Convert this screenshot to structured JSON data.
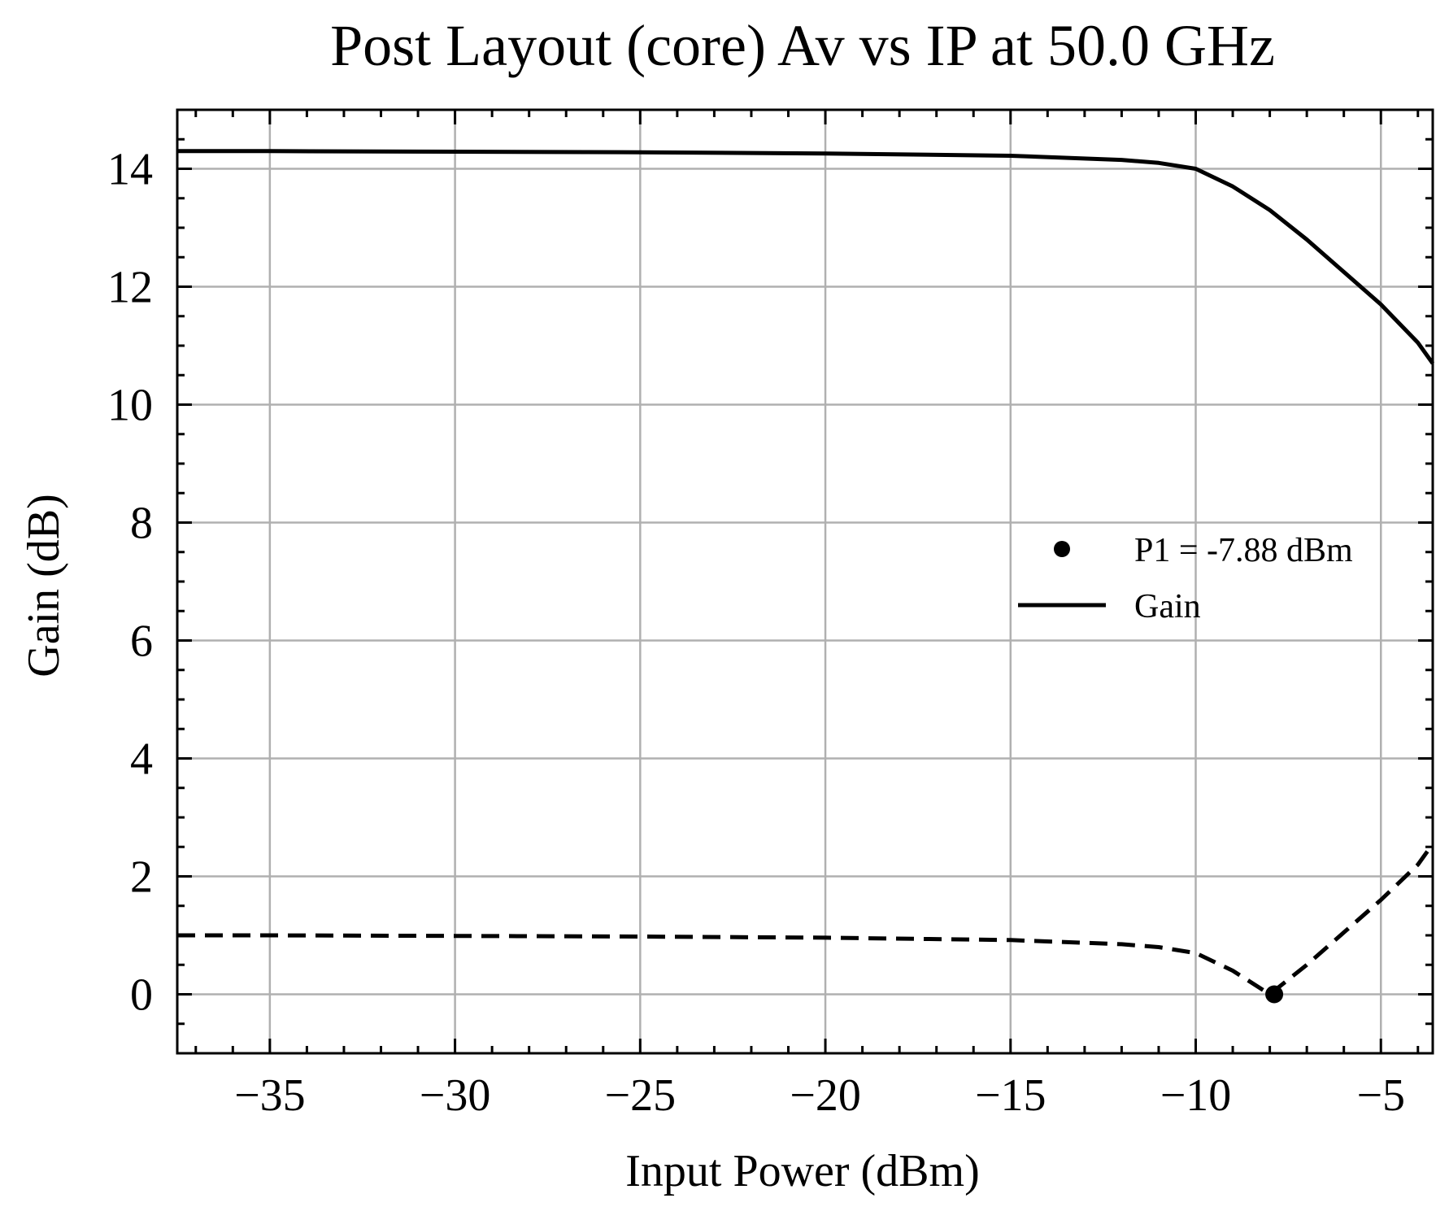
{
  "chart_data": {
    "type": "line",
    "title": "Post Layout (core) Av vs IP at 50.0 GHz",
    "xlabel": "Input Power (dBm)",
    "ylabel": "Gain (dB)",
    "xlim": [
      -37.5,
      -3.6
    ],
    "ylim": [
      -1.0,
      15.0
    ],
    "xticks": [
      -35,
      -30,
      -25,
      -20,
      -15,
      -10,
      -5
    ],
    "xtick_labels": [
      "−35",
      "−30",
      "−25",
      "−20",
      "−15",
      "−10",
      "−5"
    ],
    "yticks": [
      0,
      2,
      4,
      6,
      8,
      10,
      12,
      14
    ],
    "ytick_labels": [
      "0",
      "2",
      "4",
      "6",
      "8",
      "10",
      "12",
      "14"
    ],
    "grid": true,
    "legend_position": "right",
    "series": [
      {
        "name": "Gain",
        "style": "solid",
        "color": "#000000",
        "x": [
          -37.5,
          -35,
          -30,
          -25,
          -20,
          -15,
          -12,
          -11,
          -10,
          -9,
          -8,
          -7,
          -6,
          -5,
          -4,
          -3.6
        ],
        "y": [
          14.3,
          14.3,
          14.29,
          14.28,
          14.26,
          14.22,
          14.15,
          14.1,
          14.0,
          13.7,
          13.3,
          12.8,
          12.25,
          11.7,
          11.05,
          10.7
        ]
      },
      {
        "style": "dashed",
        "color": "#000000",
        "x": [
          -37.5,
          -35,
          -30,
          -25,
          -20,
          -15,
          -12,
          -11,
          -10,
          -9,
          -8,
          -7,
          -6,
          -5,
          -4,
          -3.6
        ],
        "y": [
          1.0,
          1.0,
          0.99,
          0.98,
          0.96,
          0.92,
          0.85,
          0.8,
          0.7,
          0.4,
          0.0,
          0.5,
          1.05,
          1.6,
          2.2,
          2.55
        ]
      }
    ],
    "marker": {
      "name": "P1 = -7.88 dBm",
      "x": -7.88,
      "y": 0.0,
      "color": "#000000"
    }
  }
}
